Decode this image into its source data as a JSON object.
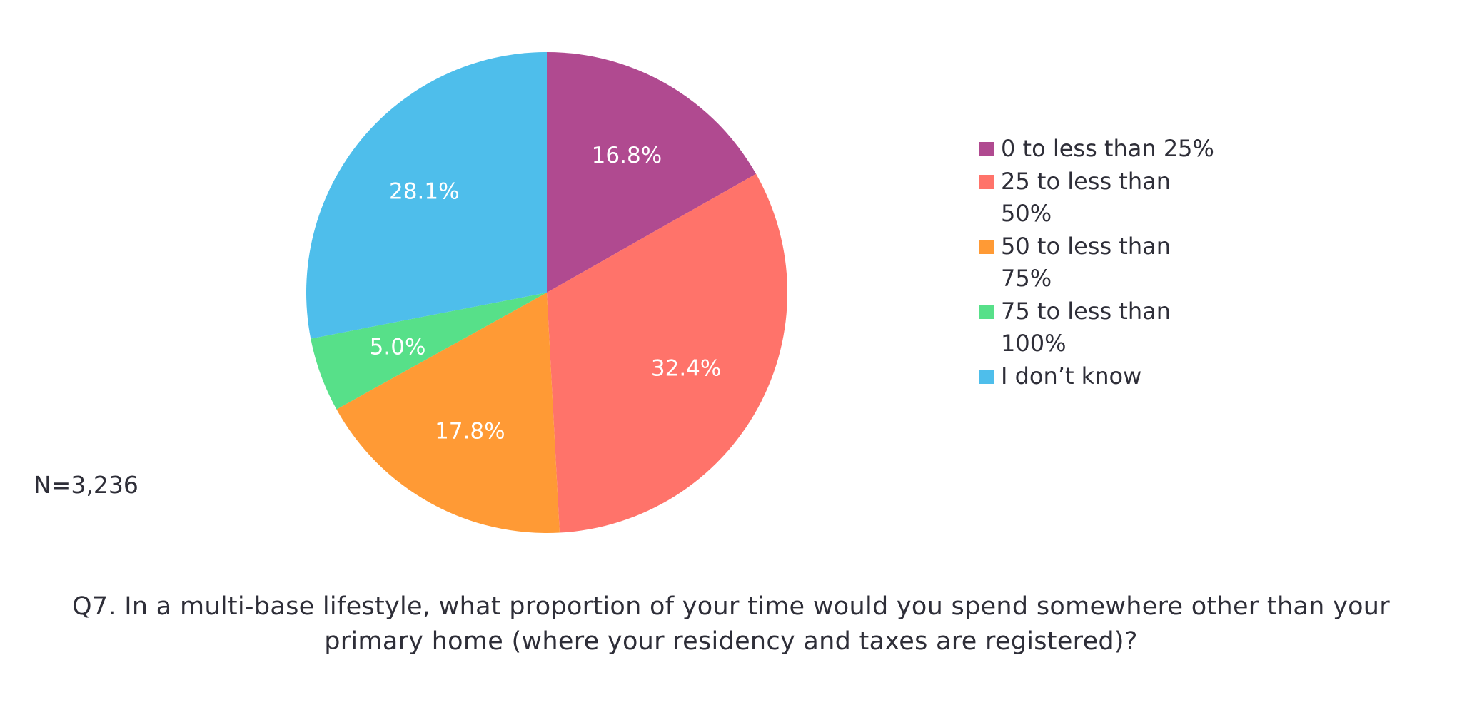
{
  "chart_data": {
    "type": "pie",
    "categories": [
      "0 to less than 25%",
      "25 to less than 50%",
      "50 to less than 75%",
      "75 to less than 100%",
      "I don’t know"
    ],
    "values": [
      16.8,
      32.4,
      17.8,
      5.0,
      28.1
    ],
    "value_labels": [
      "16.8%",
      "32.4%",
      "17.8%",
      "5.0%",
      "28.1%"
    ],
    "colors": [
      "#b04a90",
      "#ff736a",
      "#ff9a35",
      "#57e089",
      "#4ebeeb"
    ],
    "legend": {
      "placement": "right",
      "entries": [
        "0 to less than 25%",
        "25 to less than 50%",
        "50 to less than 75%",
        "75 to less than 100%",
        "I don’t know"
      ]
    },
    "start_angle": "12 o'clock",
    "direction": "clockwise",
    "note": "N=3,236",
    "caption": "Q7. In a multi-base lifestyle, what proportion of your time would you spend somewhere other than your primary home (where your residency and taxes are registered)?"
  }
}
